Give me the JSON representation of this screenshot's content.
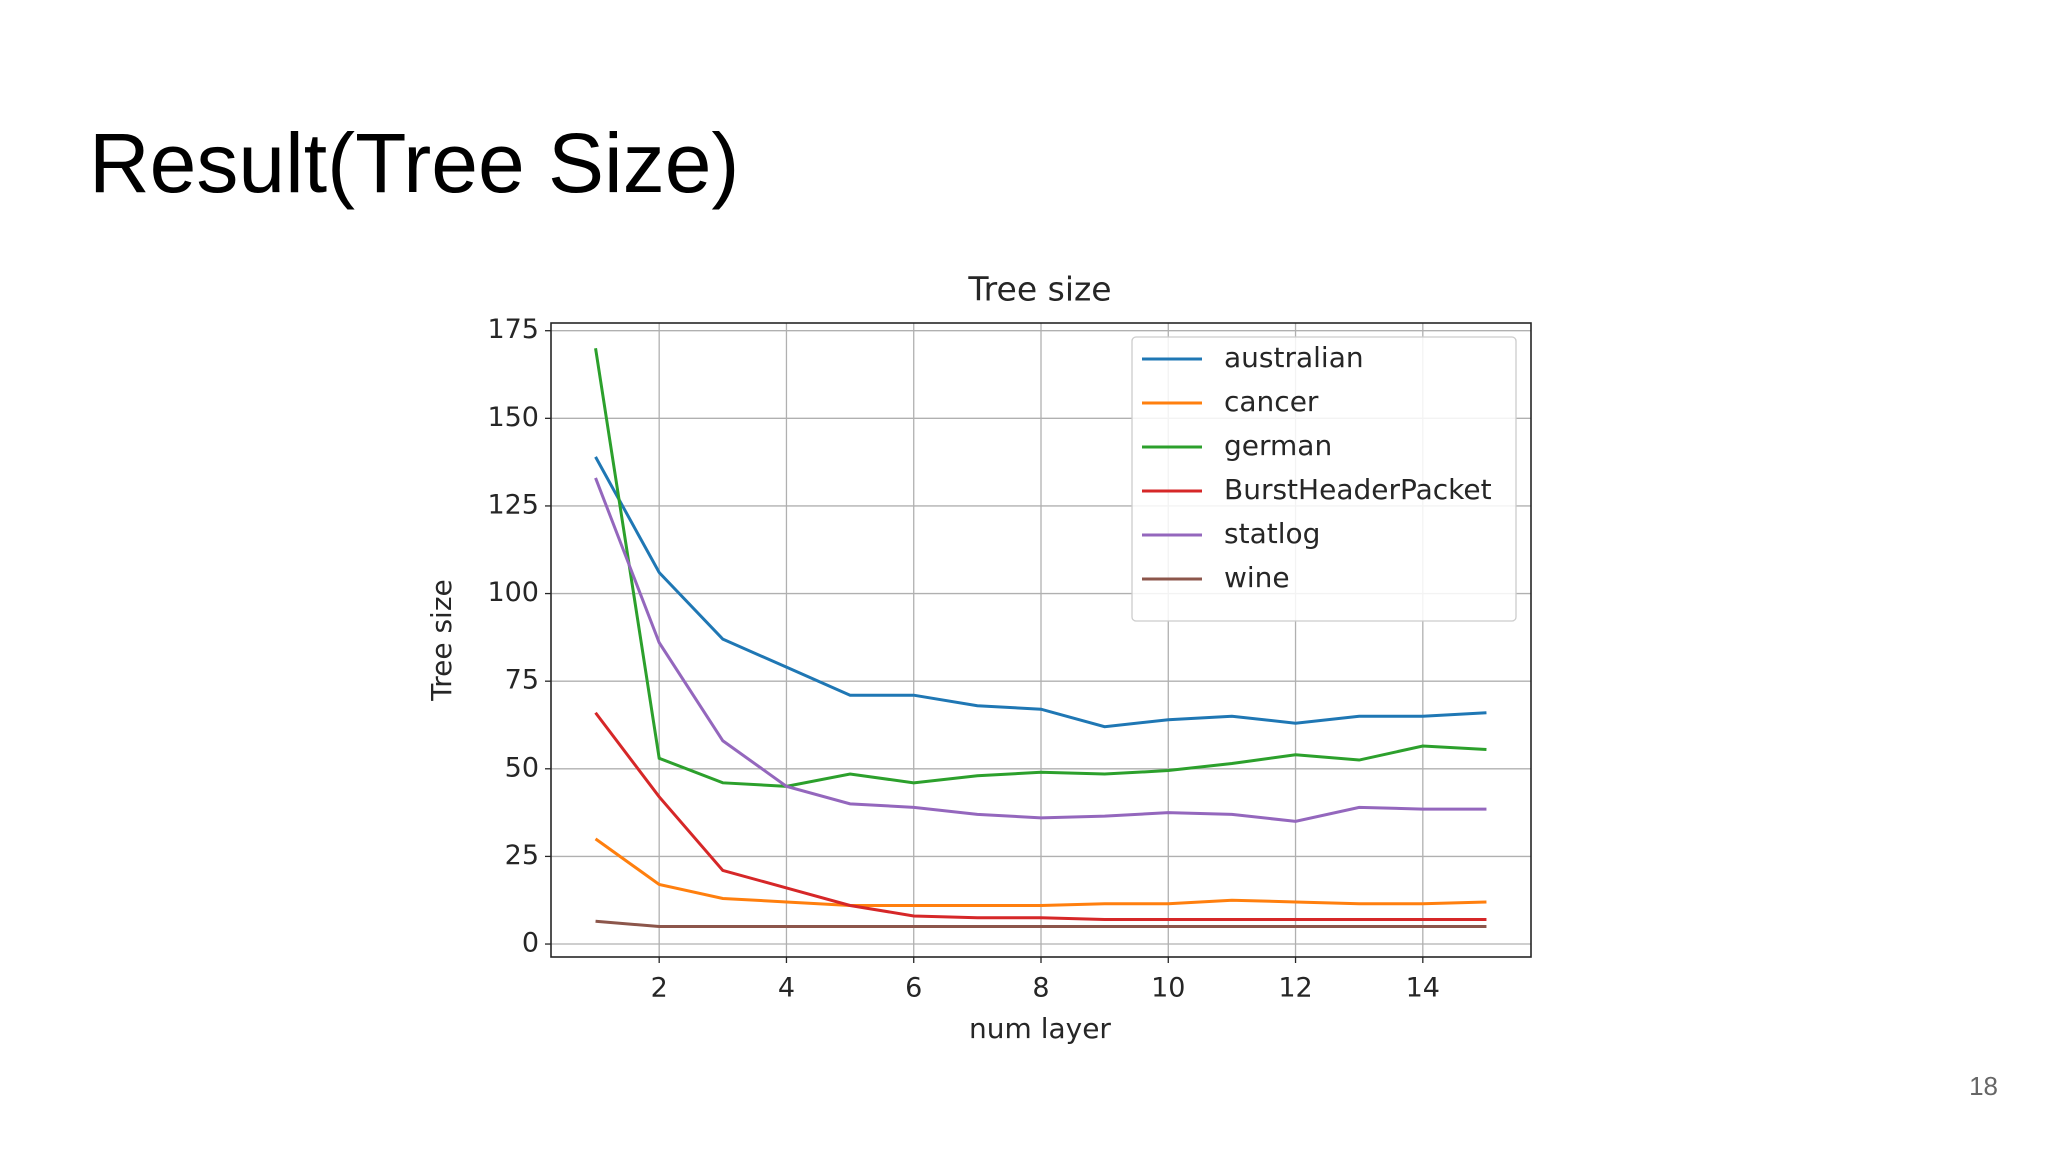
{
  "slide_title": "Result(Tree Size)",
  "page_number": "18",
  "chart_data": {
    "type": "line",
    "title": "Tree size",
    "x_label": "num layer",
    "y_label": "Tree size",
    "x": [
      1,
      2,
      3,
      4,
      5,
      6,
      7,
      8,
      9,
      10,
      11,
      12,
      13,
      14,
      15
    ],
    "series": [
      {
        "name": "australian",
        "color": "#1f77b4",
        "values": [
          139,
          106,
          87,
          79,
          71,
          71,
          68,
          67,
          62,
          64,
          65,
          63,
          65,
          65,
          66
        ]
      },
      {
        "name": "cancer",
        "color": "#ff7f0e",
        "values": [
          30,
          17,
          13,
          12,
          11,
          11,
          11,
          11,
          11.5,
          11.5,
          12.5,
          12,
          11.5,
          11.5,
          12
        ]
      },
      {
        "name": "german",
        "color": "#2ca02c",
        "values": [
          170,
          53,
          46,
          45,
          48.5,
          46,
          48,
          49,
          48.5,
          49.5,
          51.5,
          54,
          52.5,
          56.5,
          55.5
        ]
      },
      {
        "name": "BurstHeaderPacket",
        "color": "#d62728",
        "values": [
          66,
          42,
          21,
          16,
          11,
          8,
          7.5,
          7.5,
          7,
          7,
          7,
          7,
          7,
          7,
          7
        ]
      },
      {
        "name": "statlog",
        "color": "#9467bd",
        "values": [
          133,
          86,
          58,
          45,
          40,
          39,
          37,
          36,
          36.5,
          37.5,
          37,
          35,
          39,
          38.5,
          38.5
        ]
      },
      {
        "name": "wine",
        "color": "#8c564b",
        "values": [
          6.5,
          5,
          5,
          5,
          5,
          5,
          5,
          5,
          5,
          5,
          5,
          5,
          5,
          5,
          5
        ]
      }
    ],
    "xlim": [
      0.3,
      15.7
    ],
    "ylim": [
      -3.7,
      177.2
    ],
    "xticks": [
      2,
      4,
      6,
      8,
      10,
      12,
      14
    ],
    "yticks": [
      0,
      25,
      50,
      75,
      100,
      125,
      150,
      175
    ],
    "grid": true,
    "legend": "upper right"
  }
}
